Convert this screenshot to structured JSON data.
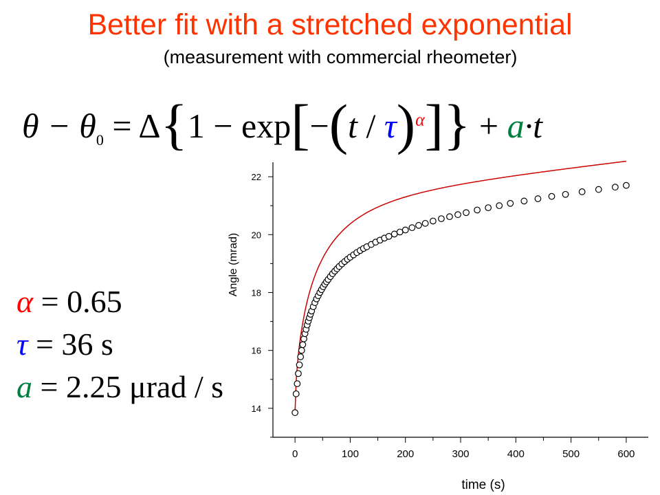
{
  "slide": {
    "title": "Better fit with a stretched exponential",
    "subtitle": "(measurement with commercial rheometer)"
  },
  "equation": {
    "lhs": "θ − θ",
    "lhs_sub": "0",
    "eq": " = Δ",
    "one_minus_exp": "1 − exp",
    "minus": "−",
    "t": "t",
    "slash": " / ",
    "tau": "τ",
    "alpha_exp": "α",
    "plus": " + ",
    "a": "a",
    "dot_t": "·t"
  },
  "params": [
    {
      "symbol": "α",
      "rest": " = 0.65",
      "color": "red"
    },
    {
      "symbol": "τ",
      "rest": " = 36 s",
      "color": "blue"
    },
    {
      "symbol": "a",
      "rest": " = 2.25 μrad / s",
      "color": "green"
    }
  ],
  "chart_data": {
    "type": "scatter",
    "xlabel": "time (s)",
    "ylabel": "Angle (mrad)",
    "xlim": [
      -40,
      640
    ],
    "ylim": [
      13,
      22.5
    ],
    "xticks": [
      0,
      100,
      200,
      300,
      400,
      500,
      600
    ],
    "yticks": [
      14,
      16,
      18,
      20,
      22
    ],
    "colors": {
      "points": "#000000",
      "fit": "#cc0000"
    },
    "model": {
      "theta0": 13.85,
      "delta": 7.35,
      "tau": 36,
      "alpha": 0.65,
      "a": 0.00225
    },
    "series": [
      {
        "type": "scatter",
        "x": [
          0,
          2,
          4,
          6,
          8,
          10,
          12,
          14,
          16,
          18,
          20,
          22,
          24,
          26,
          28,
          30,
          33,
          36,
          39,
          42,
          45,
          48,
          51,
          54,
          57,
          60,
          64,
          68,
          72,
          76,
          80,
          85,
          90,
          95,
          100,
          106,
          112,
          118,
          124,
          130,
          138,
          146,
          154,
          162,
          170,
          180,
          190,
          200,
          212,
          224,
          236,
          250,
          265,
          280,
          295,
          310,
          330,
          350,
          370,
          390,
          415,
          440,
          465,
          490,
          520,
          550,
          580,
          600
        ],
        "y": [
          13.85,
          14.5,
          14.85,
          15.2,
          15.5,
          15.78,
          16.0,
          16.2,
          16.4,
          16.58,
          16.73,
          16.88,
          17.01,
          17.13,
          17.25,
          17.36,
          17.51,
          17.65,
          17.78,
          17.89,
          18.0,
          18.1,
          18.2,
          18.29,
          18.37,
          18.45,
          18.55,
          18.65,
          18.74,
          18.82,
          18.9,
          18.99,
          19.07,
          19.15,
          19.22,
          19.3,
          19.38,
          19.45,
          19.52,
          19.58,
          19.66,
          19.74,
          19.81,
          19.88,
          19.94,
          20.02,
          20.09,
          20.16,
          20.24,
          20.32,
          20.39,
          20.47,
          20.55,
          20.62,
          20.69,
          20.76,
          20.85,
          20.93,
          21.0,
          21.08,
          21.16,
          21.24,
          21.32,
          21.39,
          21.48,
          21.56,
          21.64,
          21.7
        ]
      },
      {
        "type": "line",
        "name": "fit"
      }
    ]
  }
}
